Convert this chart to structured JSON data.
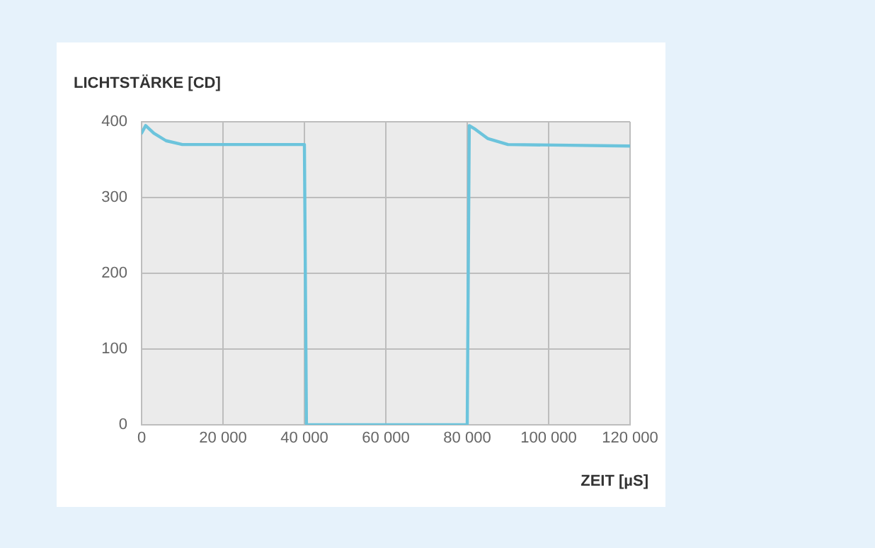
{
  "chart_data": {
    "type": "line",
    "ylabel": "LICHTSTÄRKE [CD]",
    "xlabel": "ZEIT [µS]",
    "x": [
      0,
      1000,
      3000,
      6000,
      10000,
      40000,
      40500,
      80000,
      80500,
      82000,
      85000,
      90000,
      120000
    ],
    "series": [
      {
        "color": "#6cc4dc",
        "values": [
          385,
          395,
          385,
          375,
          370,
          370,
          0,
          0,
          395,
          390,
          378,
          370,
          368
        ]
      }
    ],
    "xlim": [
      0,
      120000
    ],
    "xticks": [
      0,
      {
        "value": 20000,
        "label": "20 000"
      },
      {
        "value": 40000,
        "label": "40 000"
      },
      {
        "value": 60000,
        "label": "60 000"
      },
      {
        "value": 80000,
        "label": "80 000"
      },
      {
        "value": 100000,
        "label": "100 000"
      },
      {
        "value": 120000,
        "label": "120 000"
      }
    ],
    "ylim": [
      0,
      400
    ],
    "yticks": [
      0,
      100,
      200,
      300,
      400
    ],
    "grid": true,
    "legend": false,
    "marker": "none",
    "line_style": "solid"
  }
}
